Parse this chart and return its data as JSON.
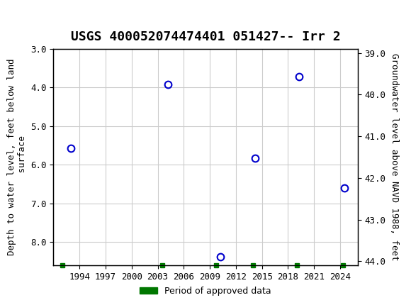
{
  "title": "USGS 400052074474401 051427-- Irr 2",
  "xlabel": "",
  "ylabel_left": "Depth to water level, feet below land\n surface",
  "ylabel_right": "Groundwater level above NAVD 1988, feet",
  "ylim_left": [
    3.0,
    8.6
  ],
  "ylim_right": [
    38.9,
    44.1
  ],
  "yticks_left": [
    3.0,
    4.0,
    5.0,
    6.0,
    7.0,
    8.0
  ],
  "yticks_right": [
    39.0,
    40.0,
    41.0,
    42.0,
    43.0,
    44.0
  ],
  "xticks": [
    1994,
    1997,
    2000,
    2003,
    2006,
    2009,
    2012,
    2015,
    2018,
    2021,
    2024
  ],
  "xlim": [
    1991,
    2026
  ],
  "data_points": [
    {
      "year": 1993.0,
      "depth": 5.57
    },
    {
      "year": 2004.2,
      "depth": 3.92
    },
    {
      "year": 2010.2,
      "depth": 8.38
    },
    {
      "year": 2014.2,
      "depth": 5.82
    },
    {
      "year": 2019.3,
      "depth": 3.72
    },
    {
      "year": 2024.5,
      "depth": 6.6
    }
  ],
  "approved_periods": [
    {
      "year": 1992.0
    },
    {
      "year": 2003.5
    },
    {
      "year": 2009.7
    },
    {
      "year": 2014.0
    },
    {
      "year": 2019.0
    },
    {
      "year": 2024.3
    }
  ],
  "point_color": "#0000cc",
  "approved_color": "#007700",
  "header_color": "#1a6b3c",
  "background_color": "#ffffff",
  "grid_color": "#cccccc",
  "title_fontsize": 13,
  "axis_label_fontsize": 9,
  "tick_fontsize": 9
}
